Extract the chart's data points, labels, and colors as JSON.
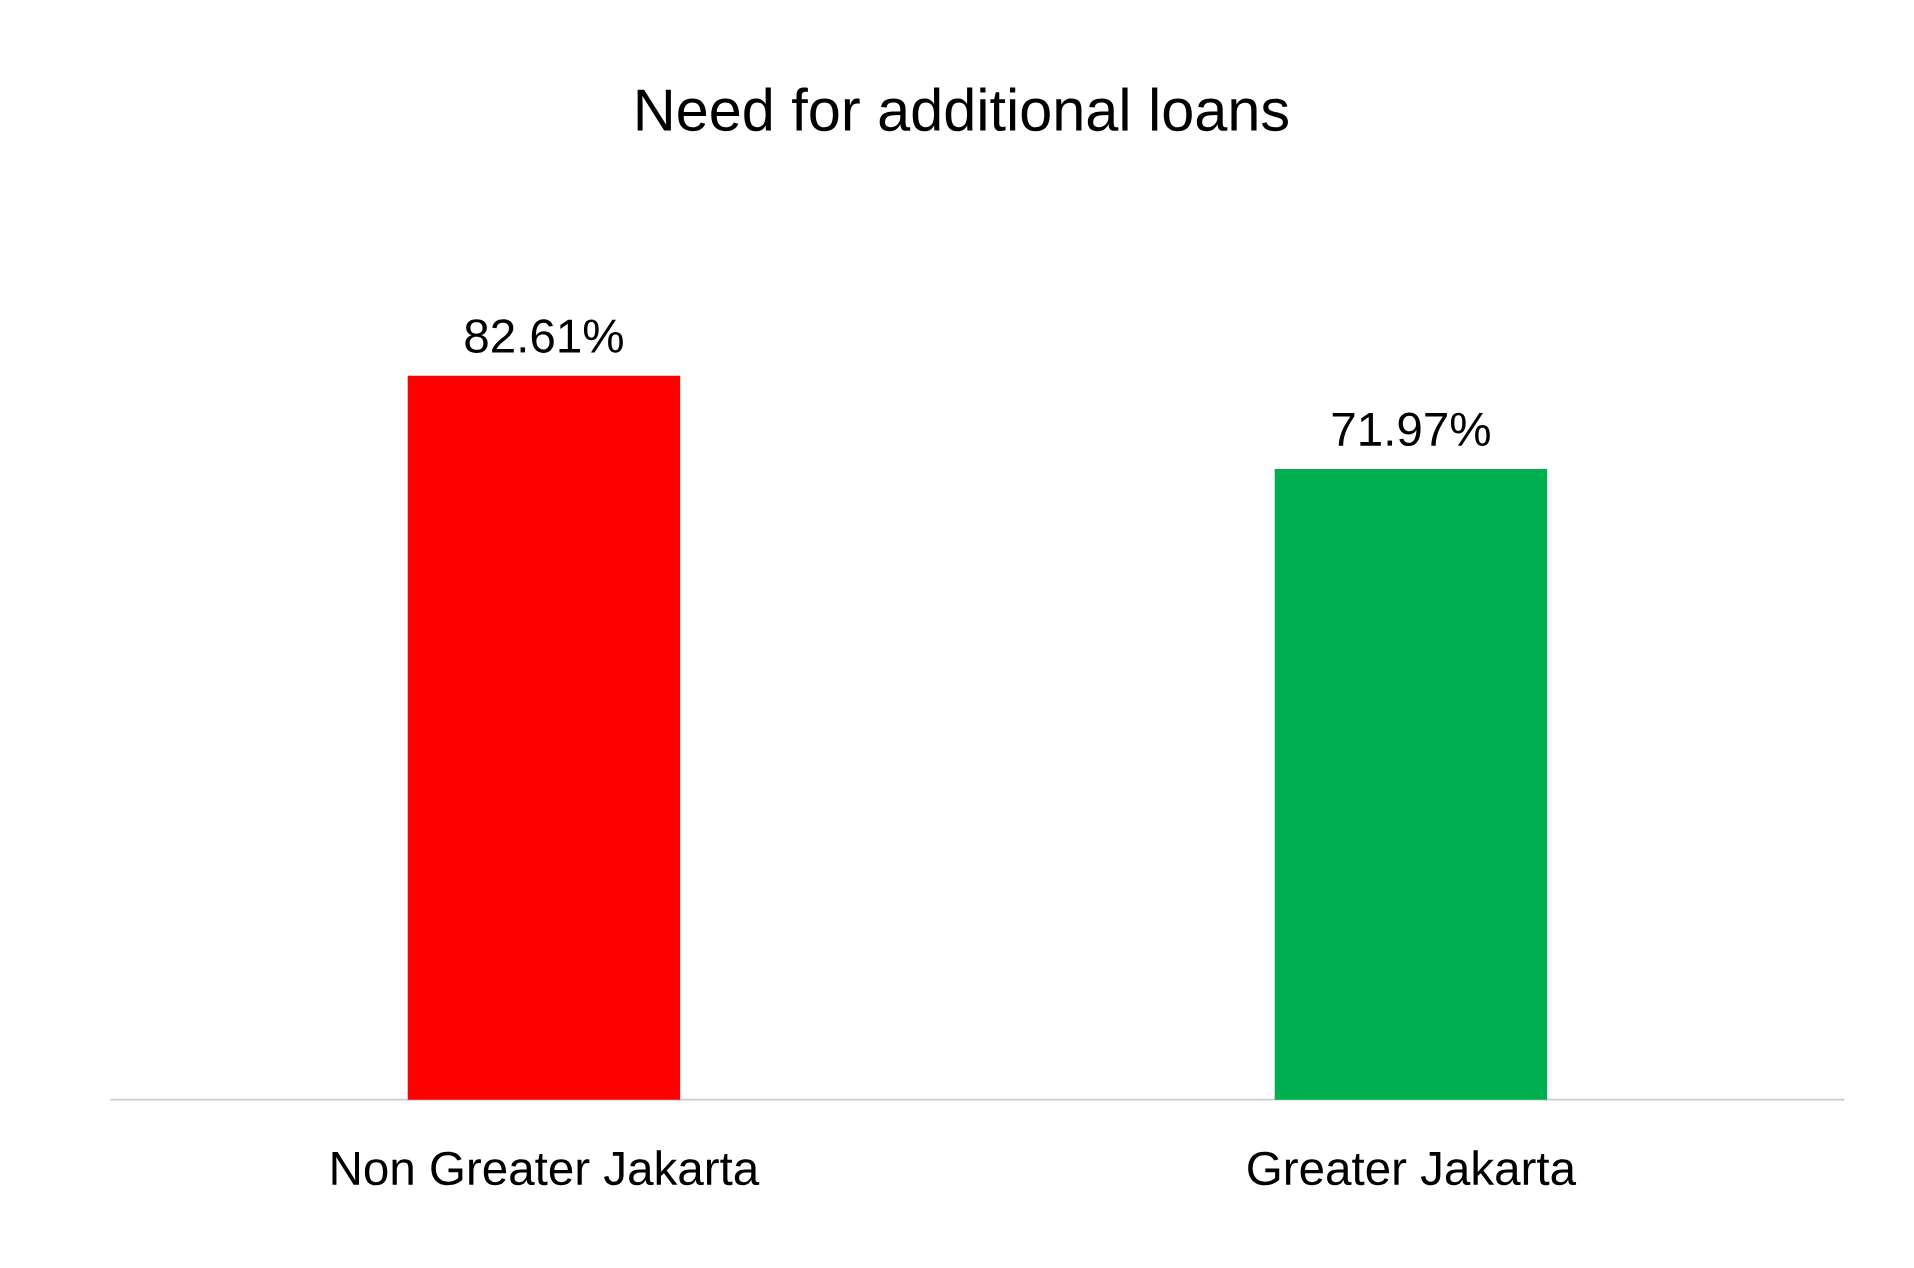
{
  "chart_data": {
    "type": "bar",
    "title": "Need for additional loans",
    "categories": [
      "Non Greater Jakarta",
      "Greater Jakarta"
    ],
    "values": [
      82.61,
      71.97
    ],
    "value_labels": [
      "82.61%",
      "71.97%"
    ],
    "colors": [
      "#ff0000",
      "#00b050"
    ]
  }
}
